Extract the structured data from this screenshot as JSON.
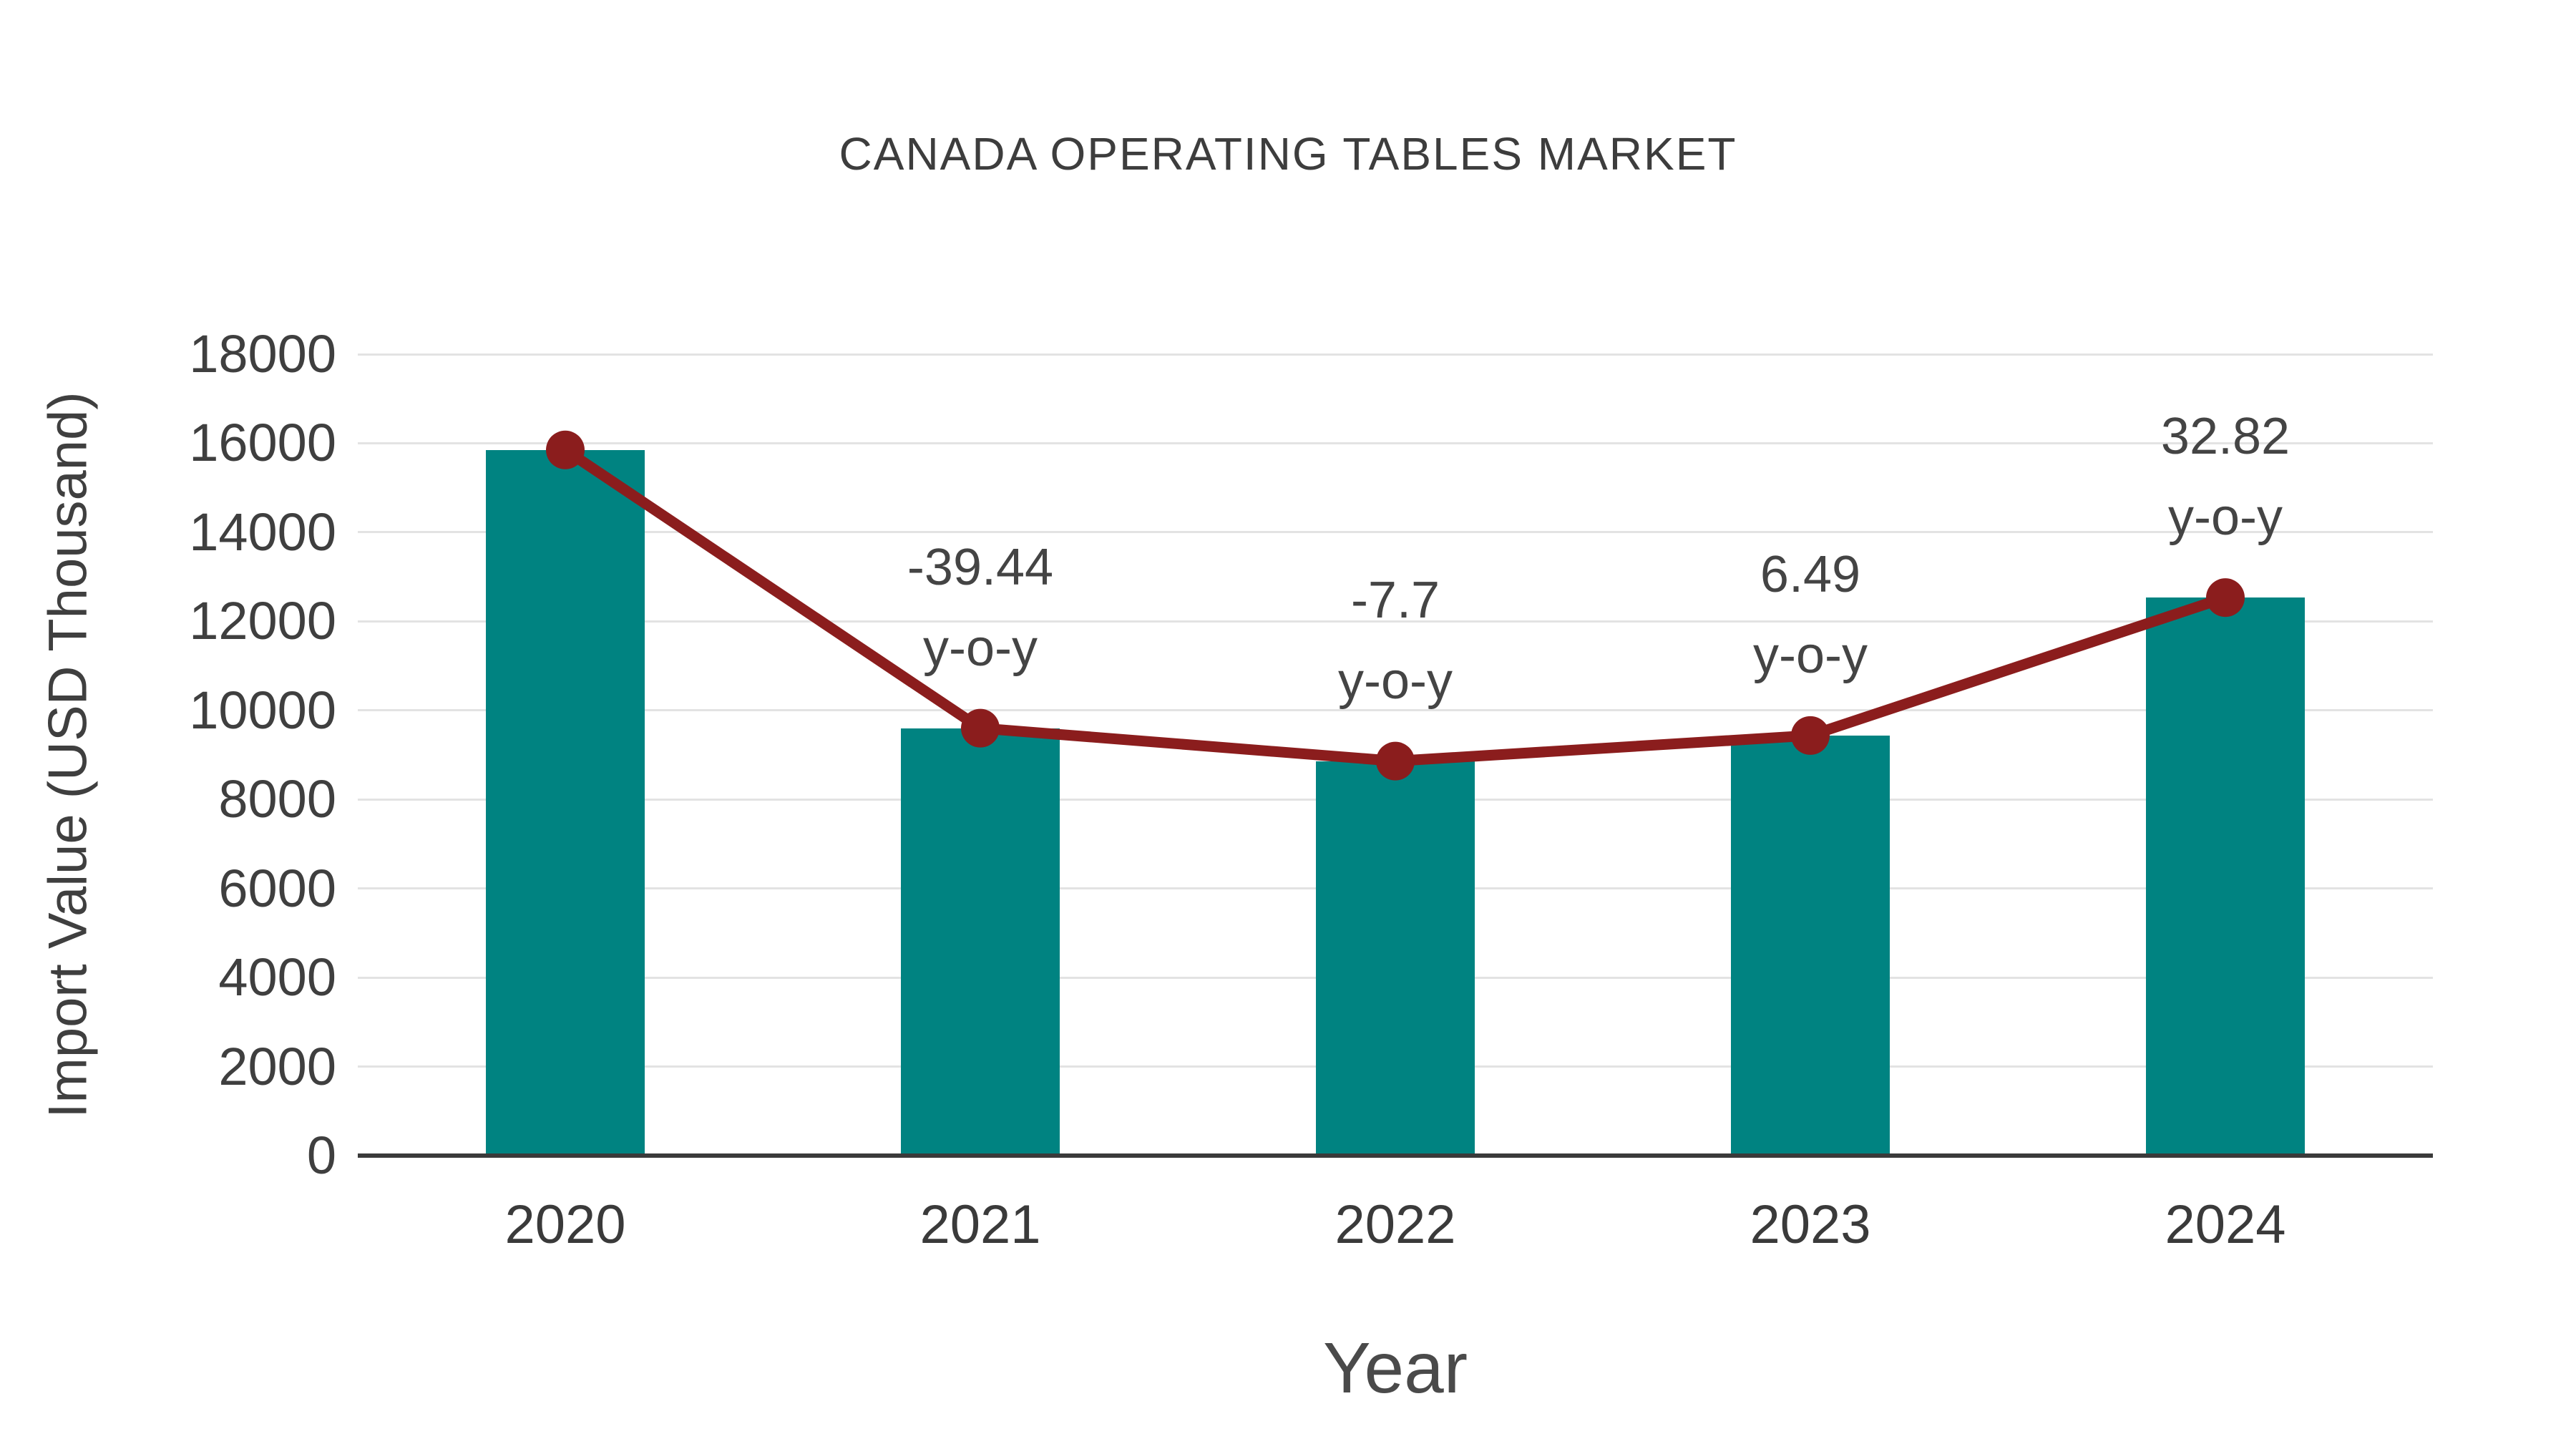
{
  "chart_data": {
    "type": "bar",
    "overlay": "line",
    "title": "CANADA OPERATING TABLES MARKET",
    "xlabel": "Year",
    "ylabel": "Import Value (USD Thousand)",
    "categories": [
      "2020",
      "2021",
      "2022",
      "2023",
      "2024"
    ],
    "values": [
      15850,
      9600,
      8861,
      9436,
      12533
    ],
    "yoy_percent": [
      null,
      -39.44,
      -7.7,
      6.49,
      32.82
    ],
    "yoy_suffix": "y-o-y",
    "ylim": [
      0,
      18000
    ],
    "yticks": [
      0,
      2000,
      4000,
      6000,
      8000,
      10000,
      12000,
      14000,
      16000,
      18000
    ],
    "grid": true,
    "legend": "none",
    "bar_color": "#008381",
    "line_color": "#8b1d1d",
    "grid_color": "#e3e3e3",
    "axis_color": "#3a3a3a",
    "text_color": "#3f3f3f"
  }
}
